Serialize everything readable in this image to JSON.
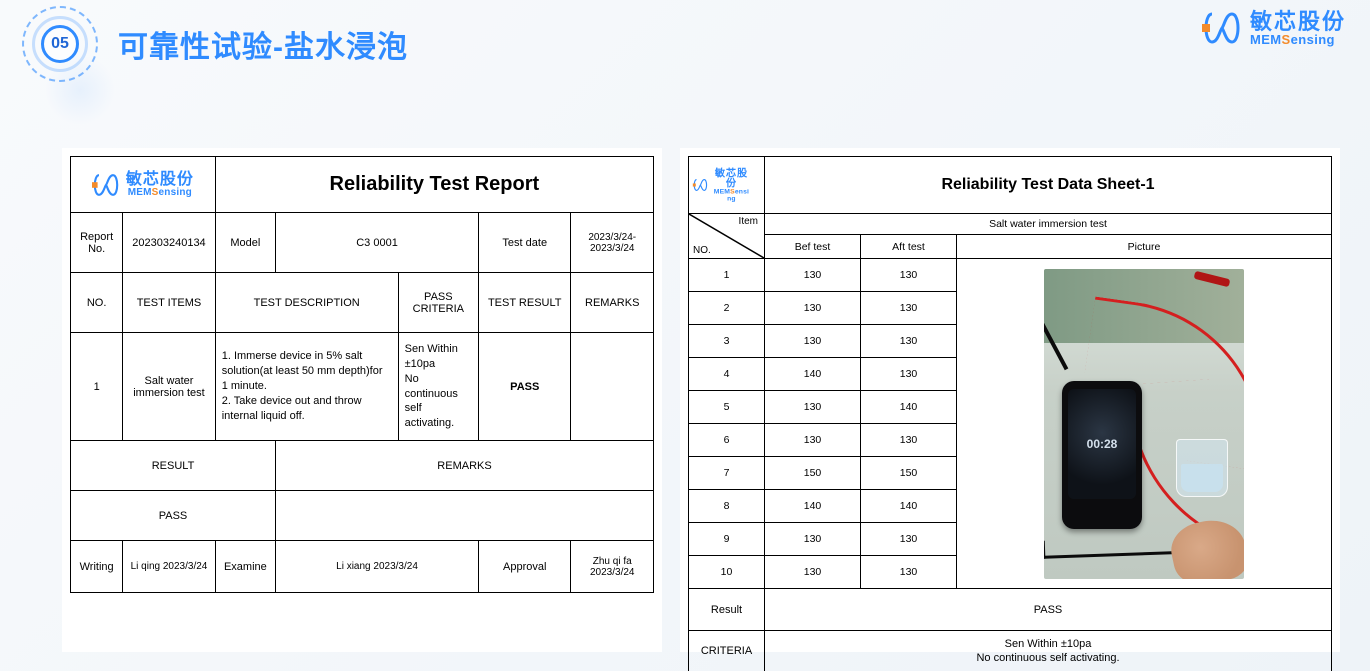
{
  "accent_color": "#2f8bff",
  "accent_orange": "#f38b2b",
  "badge_number": "05",
  "page_title": "可靠性试验-盐水浸泡",
  "brand": {
    "cn": "敏芯股份",
    "en_pre": "MEM",
    "en_s": "S",
    "en_post": "ensing"
  },
  "left": {
    "title": "Reliability Test Report",
    "row1": {
      "report_no_label": "Report No.",
      "report_no": "202303240134",
      "model_label": "Model",
      "model": "C3 0001",
      "test_date_label": "Test date",
      "test_date": "2023/3/24-2023/3/24"
    },
    "row2": {
      "no": "NO.",
      "items": "TEST ITEMS",
      "desc": "TEST DESCRIPTION",
      "criteria": "PASS CRITERIA",
      "result": "TEST RESULT",
      "remarks": "REMARKS"
    },
    "row3": {
      "no": "1",
      "items": "Salt water immersion test",
      "desc": "1. Immerse device in 5% salt solution(at least 50 mm depth)for 1 minute.\n2. Take device out and throw internal liquid off.",
      "criteria": "Sen Within ±10pa\nNo continuous self activating.",
      "result": "PASS",
      "remarks": ""
    },
    "result_label": "RESULT",
    "remarks_label": "REMARKS",
    "pass": "PASS",
    "sign": {
      "writing_label": "Writing",
      "writing": "Li qing 2023/3/24",
      "examine_label": "Examine",
      "examine": "Li xiang 2023/3/24",
      "approval_label": "Approval",
      "approval": "Zhu qi fa  2023/3/24"
    }
  },
  "right": {
    "title": "Reliability Test Data Sheet-1",
    "item_label": "Item",
    "no_label": "NO.",
    "test_name": "Salt water immersion test",
    "bef": "Bef test",
    "aft": "Aft test",
    "pic": "Picture",
    "rows": [
      {
        "no": "1",
        "b": "130",
        "a": "130"
      },
      {
        "no": "2",
        "b": "130",
        "a": "130"
      },
      {
        "no": "3",
        "b": "130",
        "a": "130"
      },
      {
        "no": "4",
        "b": "140",
        "a": "130"
      },
      {
        "no": "5",
        "b": "130",
        "a": "140"
      },
      {
        "no": "6",
        "b": "130",
        "a": "130"
      },
      {
        "no": "7",
        "b": "150",
        "a": "150"
      },
      {
        "no": "8",
        "b": "140",
        "a": "140"
      },
      {
        "no": "9",
        "b": "130",
        "a": "130"
      },
      {
        "no": "10",
        "b": "130",
        "a": "130"
      }
    ],
    "phone_screen": "00:28",
    "result_label": "Result",
    "result": "PASS",
    "criteria_label": "CRITERIA",
    "criteria": "Sen Within ±10pa\nNo continuous self activating."
  }
}
